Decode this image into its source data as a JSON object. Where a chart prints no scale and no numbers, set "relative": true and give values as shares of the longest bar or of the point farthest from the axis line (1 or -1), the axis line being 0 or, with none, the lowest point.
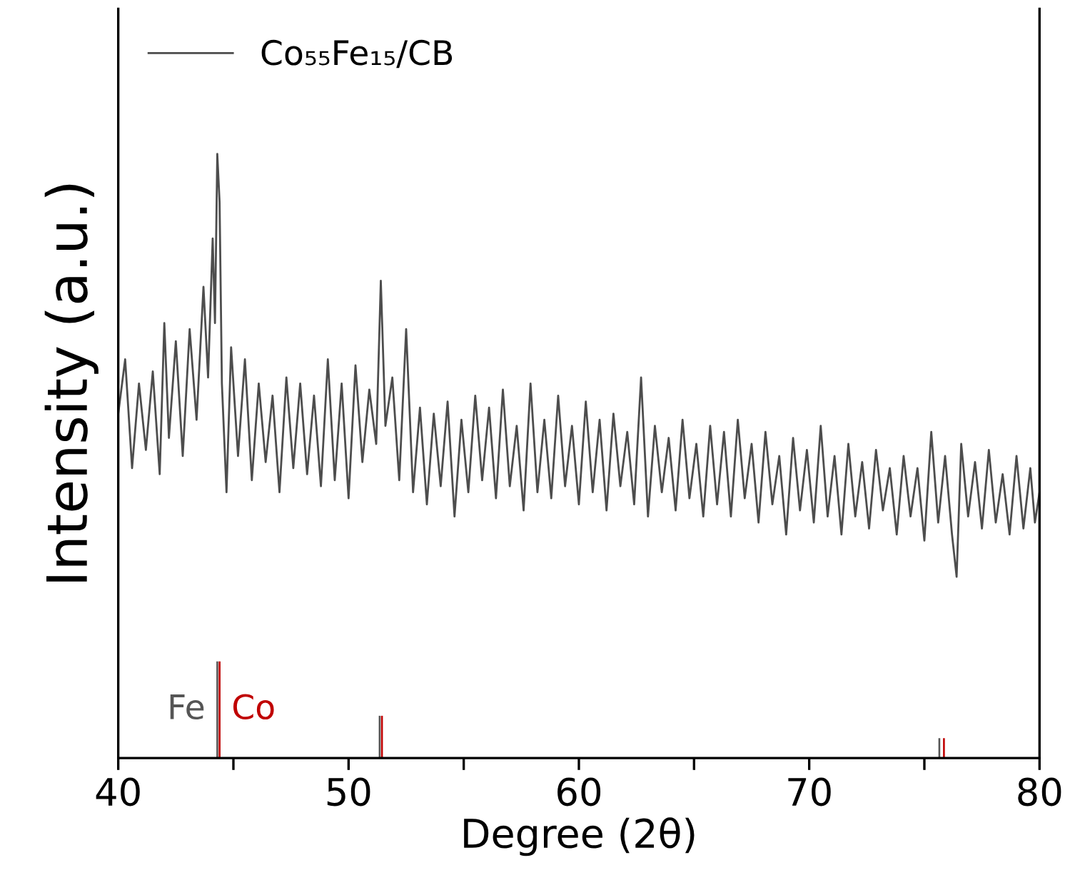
{
  "chart_data": {
    "type": "line",
    "xlabel": "Degree (2θ)",
    "ylabel": "Intensity (a.u.)",
    "relative": true,
    "xlim": [
      40,
      80
    ],
    "xticks": [
      40,
      {
        "value": 45,
        "label": null
      },
      50,
      {
        "value": 55,
        "label": null
      },
      60,
      {
        "value": 65,
        "label": null
      },
      70,
      {
        "value": 75,
        "label": null
      },
      80
    ],
    "legend": "top left",
    "grid": false,
    "series": [
      {
        "name": "Co₅₅Fe₁₅/CB",
        "color": "#4d4d4d",
        "x": [
          40.0,
          40.3,
          40.6,
          40.9,
          41.2,
          41.5,
          41.8,
          42.0,
          42.2,
          42.5,
          42.8,
          43.1,
          43.4,
          43.7,
          43.9,
          44.1,
          44.2,
          44.3,
          44.4,
          44.5,
          44.7,
          44.9,
          45.2,
          45.5,
          45.8,
          46.1,
          46.4,
          46.7,
          47.0,
          47.3,
          47.6,
          47.9,
          48.2,
          48.5,
          48.8,
          49.1,
          49.4,
          49.7,
          50.0,
          50.3,
          50.6,
          50.9,
          51.2,
          51.4,
          51.6,
          51.9,
          52.2,
          52.5,
          52.8,
          53.1,
          53.4,
          53.7,
          54.0,
          54.3,
          54.6,
          54.9,
          55.2,
          55.5,
          55.8,
          56.1,
          56.4,
          56.7,
          57.0,
          57.3,
          57.6,
          57.9,
          58.2,
          58.5,
          58.8,
          59.1,
          59.4,
          59.7,
          60.0,
          60.3,
          60.6,
          60.9,
          61.2,
          61.5,
          61.8,
          62.1,
          62.4,
          62.7,
          63.0,
          63.3,
          63.6,
          63.9,
          64.2,
          64.5,
          64.8,
          65.1,
          65.4,
          65.7,
          66.0,
          66.3,
          66.6,
          66.9,
          67.2,
          67.5,
          67.8,
          68.1,
          68.4,
          68.7,
          69.0,
          69.3,
          69.6,
          69.9,
          70.2,
          70.5,
          70.8,
          71.1,
          71.4,
          71.7,
          72.0,
          72.3,
          72.6,
          72.9,
          73.2,
          73.5,
          73.8,
          74.1,
          74.4,
          74.7,
          75.0,
          75.3,
          75.6,
          75.9,
          76.2,
          76.4,
          76.6,
          76.9,
          77.2,
          77.5,
          77.8,
          78.1,
          78.4,
          78.7,
          79.0,
          79.3,
          79.6,
          79.8,
          80.0
        ],
        "values": [
          0.57,
          0.66,
          0.48,
          0.62,
          0.51,
          0.64,
          0.47,
          0.72,
          0.53,
          0.69,
          0.5,
          0.71,
          0.56,
          0.78,
          0.63,
          0.86,
          0.72,
          1.0,
          0.92,
          0.62,
          0.44,
          0.68,
          0.5,
          0.66,
          0.46,
          0.62,
          0.49,
          0.6,
          0.44,
          0.63,
          0.48,
          0.62,
          0.47,
          0.6,
          0.45,
          0.66,
          0.46,
          0.62,
          0.43,
          0.65,
          0.49,
          0.61,
          0.52,
          0.79,
          0.55,
          0.63,
          0.46,
          0.71,
          0.44,
          0.58,
          0.42,
          0.57,
          0.45,
          0.59,
          0.4,
          0.56,
          0.44,
          0.6,
          0.46,
          0.58,
          0.43,
          0.61,
          0.45,
          0.55,
          0.41,
          0.62,
          0.44,
          0.56,
          0.43,
          0.6,
          0.45,
          0.55,
          0.42,
          0.59,
          0.44,
          0.56,
          0.41,
          0.57,
          0.45,
          0.54,
          0.42,
          0.63,
          0.4,
          0.55,
          0.44,
          0.53,
          0.41,
          0.56,
          0.43,
          0.52,
          0.4,
          0.55,
          0.42,
          0.54,
          0.4,
          0.56,
          0.43,
          0.52,
          0.39,
          0.54,
          0.42,
          0.5,
          0.37,
          0.53,
          0.41,
          0.51,
          0.39,
          0.55,
          0.4,
          0.5,
          0.37,
          0.52,
          0.4,
          0.49,
          0.38,
          0.51,
          0.41,
          0.48,
          0.37,
          0.5,
          0.4,
          0.48,
          0.36,
          0.54,
          0.39,
          0.5,
          0.37,
          0.3,
          0.52,
          0.4,
          0.49,
          0.38,
          0.51,
          0.39,
          0.47,
          0.37,
          0.5,
          0.38,
          0.48,
          0.39,
          0.44
        ]
      },
      {
        "name": "Fe",
        "type": "bar",
        "color": "#555555",
        "x": [
          44.3,
          51.35,
          75.65
        ],
        "values": [
          0.16,
          0.07,
          0.033
        ]
      },
      {
        "name": "Co",
        "type": "bar",
        "color": "#c00000",
        "x": [
          44.4,
          51.45,
          75.85
        ],
        "values": [
          0.16,
          0.07,
          0.033
        ]
      }
    ]
  }
}
